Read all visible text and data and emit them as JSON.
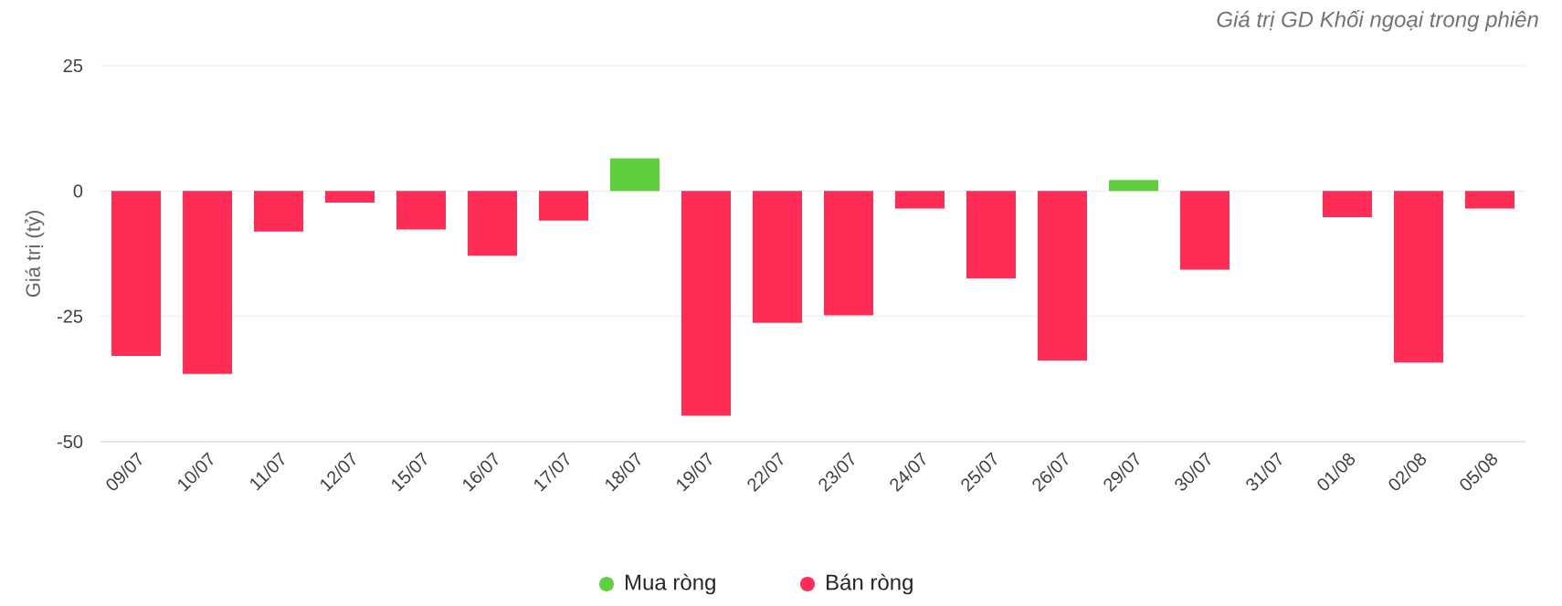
{
  "chart_data": {
    "type": "bar",
    "title": "Giá trị GD Khối ngoại trong phiên",
    "ylabel": "Giá trị (tỷ)",
    "categories": [
      "09/07",
      "10/07",
      "11/07",
      "12/07",
      "15/07",
      "16/07",
      "17/07",
      "18/07",
      "19/07",
      "22/07",
      "23/07",
      "24/07",
      "25/07",
      "26/07",
      "29/07",
      "30/07",
      "31/07",
      "01/08",
      "02/08",
      "05/08"
    ],
    "series": [
      {
        "name": "Mua ròng",
        "color": "#5fcf3f",
        "values": [
          null,
          null,
          null,
          null,
          null,
          null,
          null,
          6.5,
          null,
          null,
          null,
          null,
          null,
          null,
          2.2,
          null,
          null,
          null,
          null,
          null
        ]
      },
      {
        "name": "Bán ròng",
        "color": "#ff2d55",
        "values": [
          -32.9,
          -36.5,
          -8.1,
          -2.3,
          -7.7,
          -12.9,
          -5.9,
          null,
          -44.8,
          -26.3,
          -24.8,
          -3.5,
          -17.4,
          -33.8,
          null,
          -15.7,
          null,
          -5.2,
          -34.2,
          -3.5
        ]
      }
    ],
    "ylim": [
      -50,
      25
    ],
    "yticks": [
      -50,
      -25,
      0,
      25
    ],
    "grid": "y",
    "legend": "bottom",
    "marker": "circle"
  }
}
